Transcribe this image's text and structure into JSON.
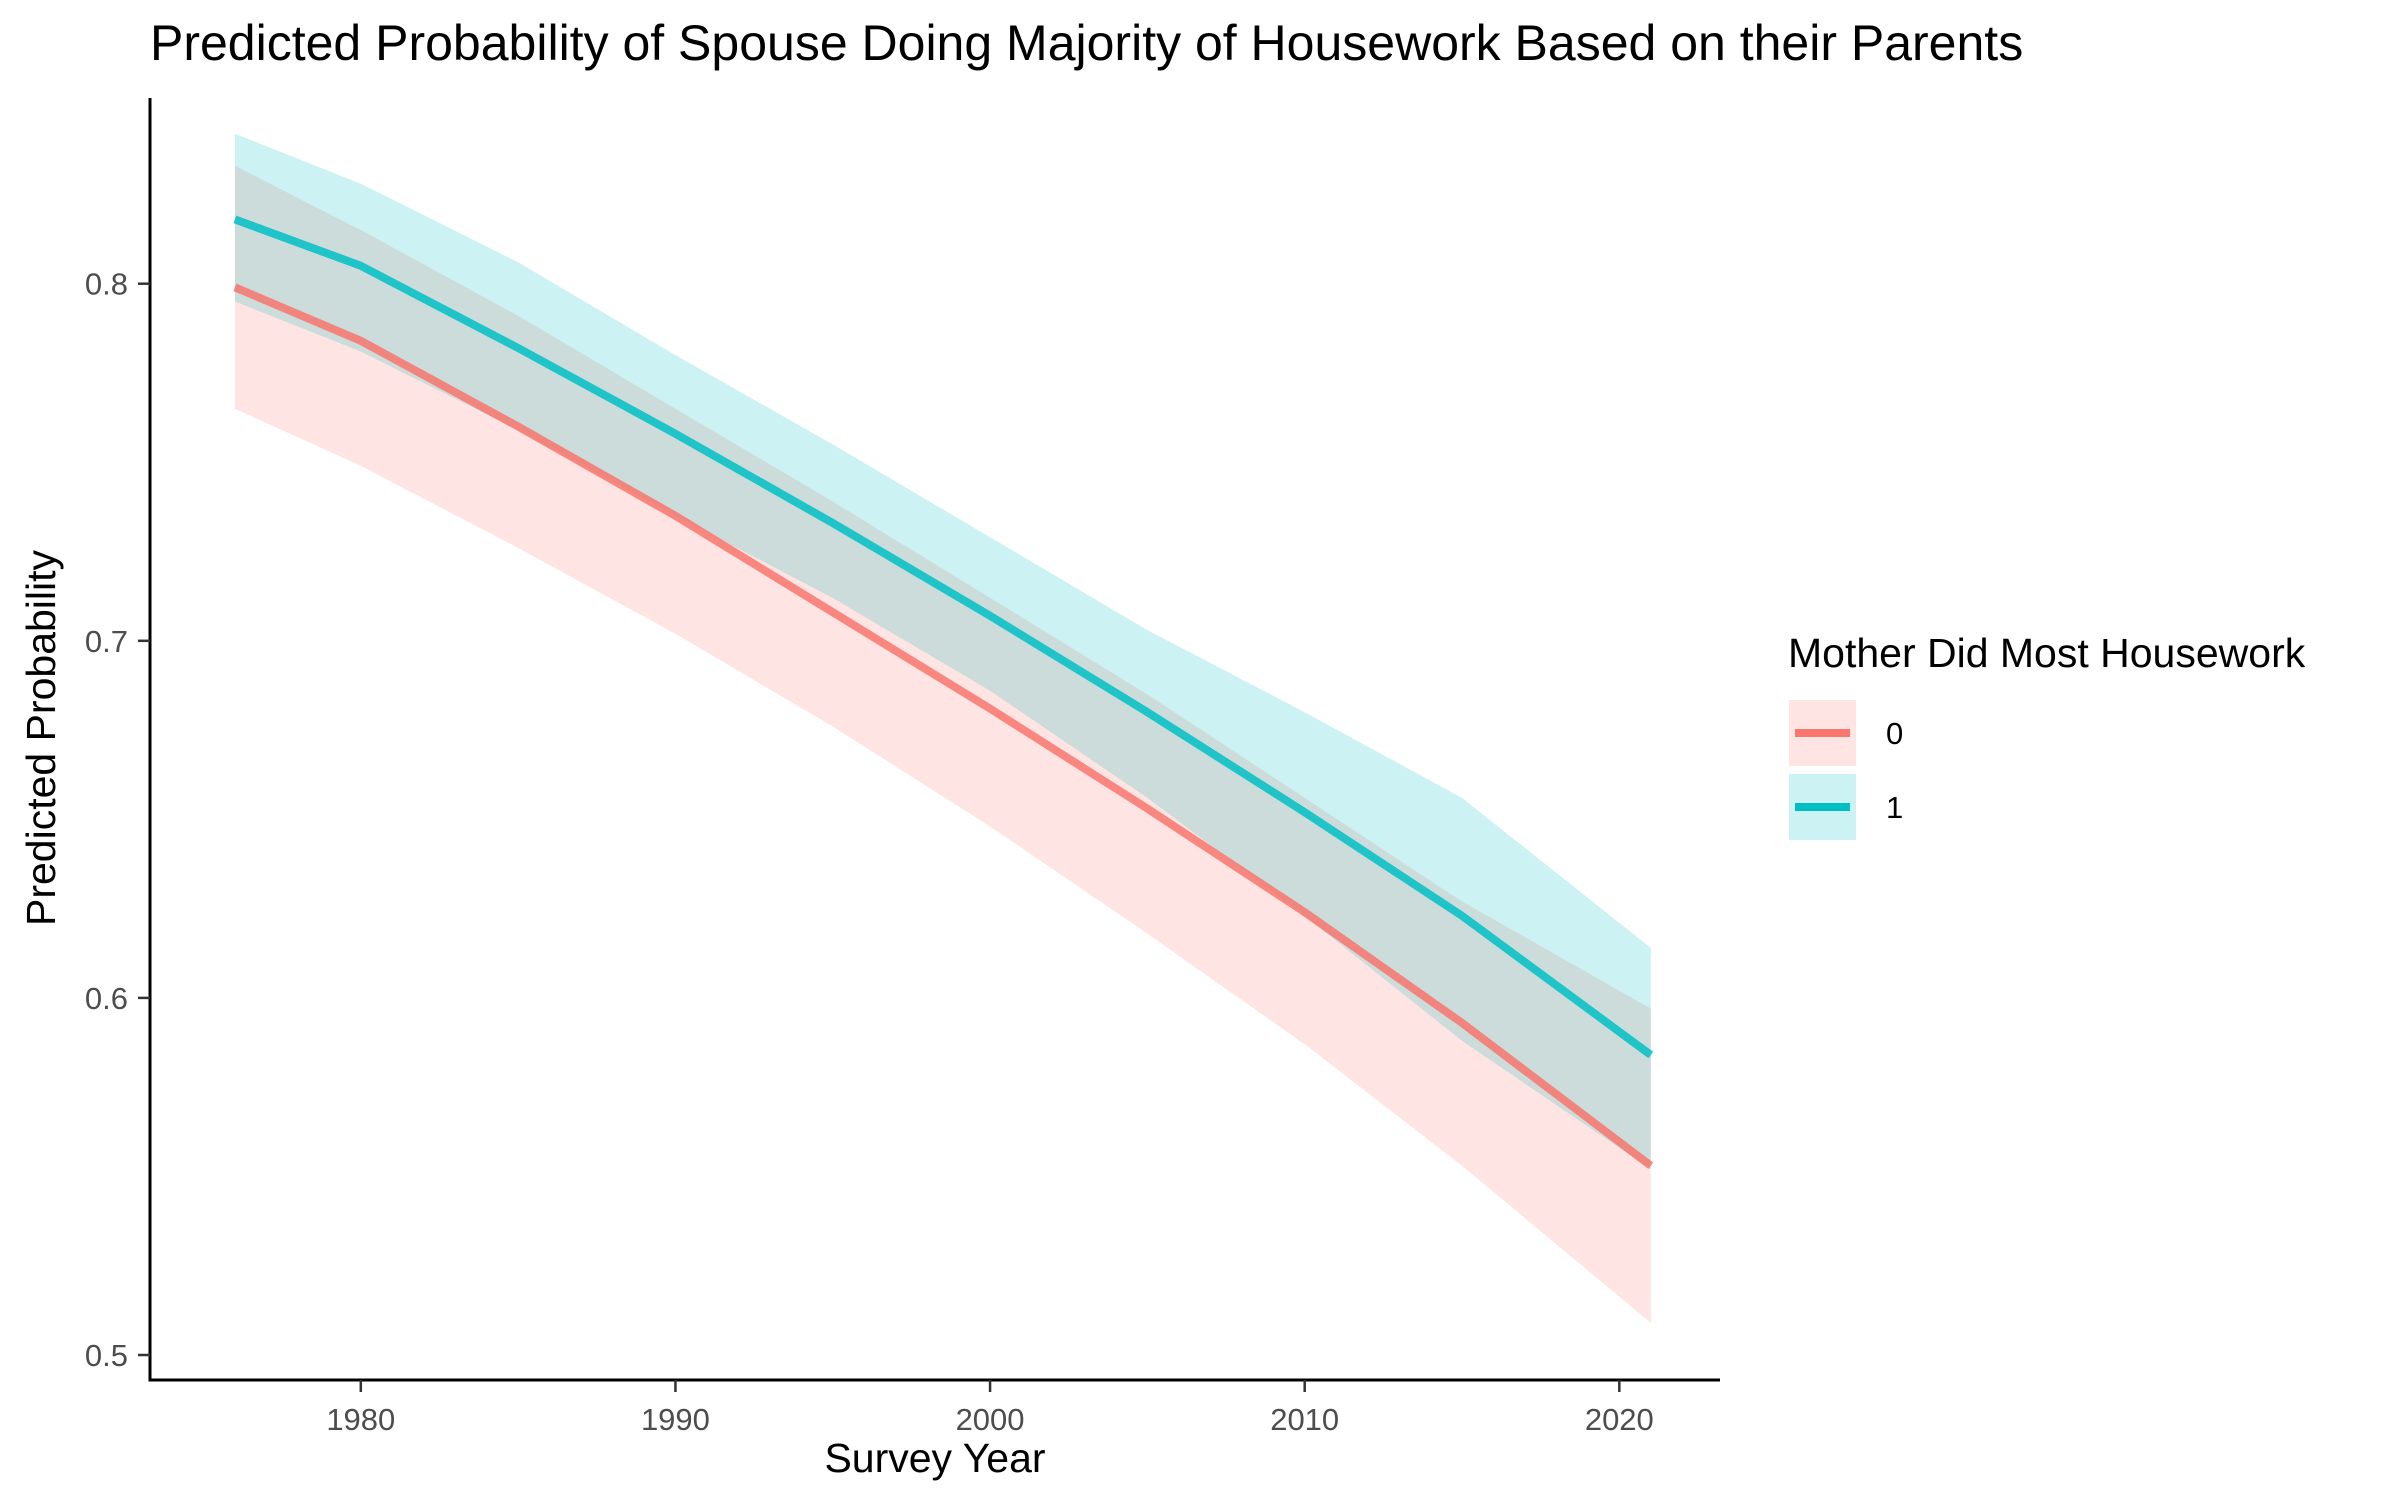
{
  "chart_data": {
    "type": "line",
    "title": "Predicted Probability of Spouse Doing Majority of Housework Based on their Parents",
    "xlabel": "Survey Year",
    "ylabel": "Predicted Probability",
    "xlim": [
      1973.3,
      2023.2
    ],
    "ylim": [
      0.493,
      0.852
    ],
    "x_ticks": [
      1980,
      1990,
      2000,
      2010,
      2020
    ],
    "y_ticks": [
      0.5,
      0.6,
      0.7,
      0.8
    ],
    "x_tick_labels": [
      "1980",
      "1990",
      "2000",
      "2010",
      "2020"
    ],
    "y_tick_labels": [
      "0.5",
      "0.6",
      "0.7",
      "0.8"
    ],
    "grid": false,
    "legend": {
      "title": "Mother Did Most Housework",
      "position": "right"
    },
    "x": [
      1976,
      1980,
      1985,
      1990,
      1995,
      2000,
      2005,
      2010,
      2015,
      2021
    ],
    "series": [
      {
        "name": "0",
        "color": "#F8766D",
        "fill": "#FFE0DE",
        "values": [
          0.799,
          0.784,
          0.76,
          0.735,
          0.708,
          0.681,
          0.653,
          0.624,
          0.593,
          0.553
        ],
        "lower": [
          0.765,
          0.749,
          0.726,
          0.702,
          0.676,
          0.648,
          0.618,
          0.587,
          0.553,
          0.509
        ],
        "upper": [
          0.833,
          0.815,
          0.791,
          0.765,
          0.739,
          0.712,
          0.685,
          0.656,
          0.627,
          0.597
        ]
      },
      {
        "name": "1",
        "color": "#00BFC4",
        "fill": "#CCF2F3",
        "values": [
          0.818,
          0.805,
          0.782,
          0.758,
          0.733,
          0.707,
          0.68,
          0.652,
          0.623,
          0.584
        ],
        "lower": [
          0.795,
          0.781,
          0.759,
          0.735,
          0.712,
          0.686,
          0.656,
          0.623,
          0.588,
          0.552
        ],
        "upper": [
          0.842,
          0.828,
          0.806,
          0.78,
          0.755,
          0.729,
          0.703,
          0.68,
          0.656,
          0.614
        ]
      }
    ]
  }
}
